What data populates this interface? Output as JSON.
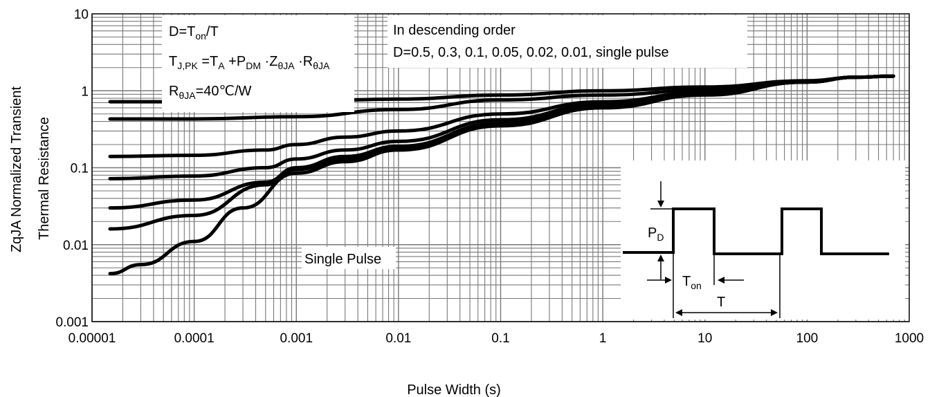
{
  "chart_data": {
    "type": "line",
    "xscale": "log",
    "yscale": "log",
    "xlim": [
      1e-05,
      1000
    ],
    "ylim": [
      0.001,
      10
    ],
    "grid": true,
    "xlabel": "Pulse Width (s)",
    "ylabel_line1": "ZqJA Normalized Transient",
    "ylabel_line2": "Thermal Resistance",
    "x_ticks": [
      "0.00001",
      "0.0001",
      "0.001",
      "0.01",
      "0.1",
      "1",
      "10",
      "100",
      "1000"
    ],
    "y_ticks": [
      "0.001",
      "0.01",
      "0.1",
      "1",
      "10"
    ],
    "legend_text": {
      "line1": "In descending order",
      "line2": "D=0.5, 0.3, 0.1, 0.05, 0.02, 0.01, single pulse"
    },
    "single_pulse_label": "Single Pulse",
    "series": [
      {
        "name": "0.5",
        "x": [
          1.5e-05,
          0.0001,
          0.001,
          0.01,
          0.1,
          1,
          10,
          100,
          300,
          700
        ],
        "y": [
          0.72,
          0.72,
          0.73,
          0.78,
          0.88,
          1.0,
          1.12,
          1.35,
          1.5,
          1.55
        ]
      },
      {
        "name": "0.3",
        "x": [
          1.5e-05,
          0.0001,
          0.001,
          0.01,
          0.1,
          1,
          10,
          100,
          300,
          700
        ],
        "y": [
          0.43,
          0.43,
          0.46,
          0.57,
          0.76,
          0.88,
          1.02,
          1.3,
          1.5,
          1.55
        ]
      },
      {
        "name": "0.1",
        "x": [
          1.5e-05,
          0.0001,
          0.0005,
          0.001,
          0.003,
          0.01,
          0.1,
          1,
          10,
          100,
          300,
          700
        ],
        "y": [
          0.14,
          0.145,
          0.17,
          0.2,
          0.25,
          0.3,
          0.5,
          0.72,
          0.95,
          1.3,
          1.5,
          1.55
        ]
      },
      {
        "name": "0.05",
        "x": [
          1.5e-05,
          0.0001,
          0.0005,
          0.001,
          0.003,
          0.01,
          0.1,
          1,
          10,
          100,
          300,
          700
        ],
        "y": [
          0.072,
          0.078,
          0.1,
          0.13,
          0.17,
          0.22,
          0.42,
          0.67,
          0.92,
          1.3,
          1.5,
          1.55
        ]
      },
      {
        "name": "0.02",
        "x": [
          1.5e-05,
          0.0001,
          0.0005,
          0.001,
          0.003,
          0.01,
          0.1,
          1,
          10,
          100,
          300,
          700
        ],
        "y": [
          0.03,
          0.038,
          0.065,
          0.1,
          0.14,
          0.19,
          0.38,
          0.64,
          0.9,
          1.3,
          1.5,
          1.55
        ]
      },
      {
        "name": "0.01",
        "x": [
          1.5e-05,
          0.0001,
          0.0005,
          0.001,
          0.003,
          0.01,
          0.1,
          1,
          10,
          100,
          300,
          700
        ],
        "y": [
          0.016,
          0.024,
          0.06,
          0.095,
          0.13,
          0.18,
          0.36,
          0.62,
          0.89,
          1.3,
          1.5,
          1.55
        ]
      },
      {
        "name": "single pulse",
        "x": [
          1.5e-05,
          3e-05,
          0.0001,
          0.0003,
          0.001,
          0.003,
          0.01,
          0.1,
          1,
          10,
          100,
          300,
          700
        ],
        "y": [
          0.0042,
          0.0055,
          0.011,
          0.03,
          0.085,
          0.12,
          0.17,
          0.35,
          0.6,
          0.88,
          1.3,
          1.5,
          1.55
        ]
      }
    ]
  },
  "formula_box": {
    "duty": {
      "base": "D=T",
      "sub": "on",
      "tail": "/T"
    },
    "junction": [
      {
        "t": "T",
        "sub": "J,PK"
      },
      {
        "t": "=T",
        "sub": "A"
      },
      {
        "t": "+P",
        "sub": "DM"
      },
      {
        "t": "·Z",
        "sub": "θJA"
      },
      {
        "t": "·R",
        "sub": "θJA"
      }
    ],
    "rtheta": {
      "base": "R",
      "sub": "θJA",
      "tail": "=40℃/W"
    }
  },
  "inset": {
    "pd": {
      "base": "P",
      "sub": "D"
    },
    "ton": {
      "base": "T",
      "sub": "on"
    },
    "period": "T"
  }
}
